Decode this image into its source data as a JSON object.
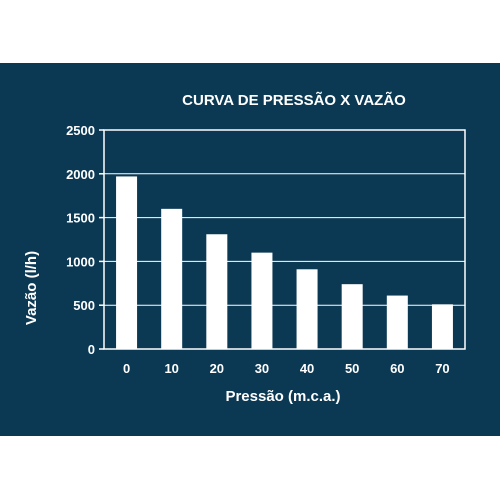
{
  "colors": {
    "panel_background": "#0b3954",
    "bar_fill": "#ffffff",
    "axis_and_grid": "#ffffff",
    "text": "#ffffff"
  },
  "chart_data": {
    "type": "bar",
    "title": "CURVA DE PRESSÃO X VAZÃO",
    "xlabel": "Pressão (m.c.a.)",
    "ylabel": "Vazão (l/h)",
    "categories": [
      "0",
      "10",
      "20",
      "30",
      "40",
      "50",
      "60",
      "70"
    ],
    "values": [
      1970,
      1600,
      1310,
      1100,
      910,
      740,
      610,
      510
    ],
    "ylim": [
      0,
      2500
    ],
    "yticks": [
      0,
      500,
      1000,
      1500,
      2000,
      2500
    ],
    "grid": true,
    "legend": "none"
  }
}
